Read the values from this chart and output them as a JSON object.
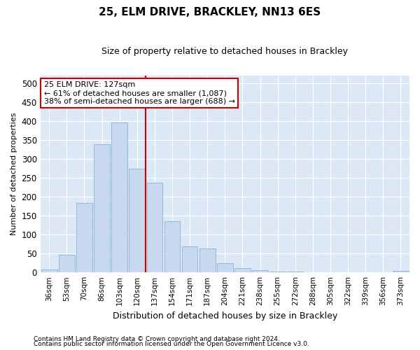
{
  "title": "25, ELM DRIVE, BRACKLEY, NN13 6ES",
  "subtitle": "Size of property relative to detached houses in Brackley",
  "xlabel": "Distribution of detached houses by size in Brackley",
  "ylabel": "Number of detached properties",
  "bar_color": "#c8d8ee",
  "bar_edge_color": "#7aaad0",
  "background_color": "#dce8f5",
  "grid_color": "#ffffff",
  "fig_background": "#ffffff",
  "categories": [
    "36sqm",
    "53sqm",
    "70sqm",
    "86sqm",
    "103sqm",
    "120sqm",
    "137sqm",
    "154sqm",
    "171sqm",
    "187sqm",
    "204sqm",
    "221sqm",
    "238sqm",
    "255sqm",
    "272sqm",
    "288sqm",
    "305sqm",
    "322sqm",
    "339sqm",
    "356sqm",
    "373sqm"
  ],
  "values": [
    8,
    46,
    184,
    338,
    397,
    275,
    238,
    135,
    68,
    63,
    25,
    12,
    5,
    3,
    2,
    1,
    1,
    1,
    0,
    0,
    4
  ],
  "vline_x_index": 5.5,
  "annotation_line1": "25 ELM DRIVE: 127sqm",
  "annotation_line2": "← 61% of detached houses are smaller (1,087)",
  "annotation_line3": "38% of semi-detached houses are larger (688) →",
  "annotation_box_color": "#ffffff",
  "annotation_box_edge_color": "#cc0000",
  "vline_color": "#cc0000",
  "ylim": [
    0,
    520
  ],
  "yticks": [
    0,
    50,
    100,
    150,
    200,
    250,
    300,
    350,
    400,
    450,
    500
  ],
  "footnote1": "Contains HM Land Registry data © Crown copyright and database right 2024.",
  "footnote2": "Contains public sector information licensed under the Open Government Licence v3.0."
}
